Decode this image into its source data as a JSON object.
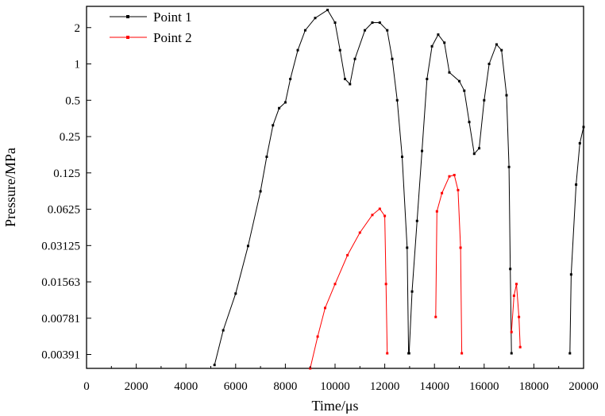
{
  "chart_data": {
    "type": "line",
    "xlabel": "Time/μs",
    "ylabel": "Pressure/MPa",
    "y_scale": "log2",
    "xlim": [
      0,
      20000
    ],
    "ylim": [
      0.003,
      3.0
    ],
    "x_ticks": [
      "0",
      "2000",
      "4000",
      "6000",
      "8000",
      "10000",
      "12000",
      "14000",
      "16000",
      "18000",
      "20000"
    ],
    "x_tick_values": [
      0,
      2000,
      4000,
      6000,
      8000,
      10000,
      12000,
      14000,
      16000,
      18000,
      20000
    ],
    "y_ticks": [
      "2",
      "1",
      "0.5",
      "0.25",
      "0.125",
      "0.0625",
      "0.03125",
      "0.01563",
      "0.00781",
      "0.00391"
    ],
    "y_tick_values": [
      2,
      1,
      0.5,
      0.25,
      0.125,
      0.0625,
      0.03125,
      0.01563,
      0.00781,
      0.00391
    ],
    "grid": false,
    "legend_position": "top-left",
    "series": [
      {
        "name": "Point 1",
        "color": "#000000",
        "segments": [
          [
            [
              5150,
              0.0032
            ],
            [
              5500,
              0.0062
            ],
            [
              6000,
              0.0125
            ],
            [
              6500,
              0.031
            ],
            [
              7000,
              0.088
            ],
            [
              7250,
              0.17
            ],
            [
              7500,
              0.31
            ],
            [
              7750,
              0.43
            ],
            [
              8000,
              0.48
            ],
            [
              8200,
              0.75
            ],
            [
              8500,
              1.3
            ],
            [
              8800,
              1.9
            ],
            [
              9200,
              2.4
            ],
            [
              9700,
              2.8
            ],
            [
              10000,
              2.2
            ],
            [
              10200,
              1.3
            ],
            [
              10400,
              0.75
            ],
            [
              10600,
              0.68
            ],
            [
              10800,
              1.1
            ],
            [
              11200,
              1.9
            ],
            [
              11500,
              2.2
            ],
            [
              11800,
              2.2
            ],
            [
              12100,
              1.9
            ],
            [
              12300,
              1.1
            ],
            [
              12500,
              0.5
            ],
            [
              12700,
              0.17
            ],
            [
              12900,
              0.03
            ],
            [
              12960,
              0.004
            ]
          ],
          [
            [
              12980,
              0.004
            ],
            [
              13100,
              0.013
            ],
            [
              13300,
              0.05
            ],
            [
              13500,
              0.19
            ],
            [
              13700,
              0.75
            ],
            [
              13900,
              1.4
            ],
            [
              14150,
              1.75
            ],
            [
              14400,
              1.5
            ],
            [
              14600,
              0.85
            ],
            [
              15000,
              0.72
            ],
            [
              15200,
              0.6
            ],
            [
              15400,
              0.33
            ],
            [
              15600,
              0.18
            ],
            [
              15800,
              0.2
            ],
            [
              16000,
              0.5
            ],
            [
              16200,
              1.0
            ],
            [
              16500,
              1.45
            ],
            [
              16700,
              1.3
            ],
            [
              16900,
              0.55
            ],
            [
              17000,
              0.14
            ],
            [
              17050,
              0.02
            ],
            [
              17100,
              0.004
            ]
          ],
          [
            [
              19450,
              0.004
            ],
            [
              19500,
              0.018
            ],
            [
              19700,
              0.1
            ],
            [
              19850,
              0.22
            ],
            [
              20000,
              0.3
            ]
          ]
        ]
      },
      {
        "name": "Point 2",
        "color": "#ff0000",
        "segments": [
          [
            [
              9000,
              0.003
            ],
            [
              9300,
              0.0055
            ],
            [
              9600,
              0.0095
            ],
            [
              10000,
              0.015
            ],
            [
              10500,
              0.026
            ],
            [
              11000,
              0.04
            ],
            [
              11500,
              0.056
            ],
            [
              11800,
              0.063
            ],
            [
              12000,
              0.055
            ],
            [
              12050,
              0.015
            ],
            [
              12100,
              0.004
            ]
          ],
          [
            [
              14050,
              0.008
            ],
            [
              14100,
              0.06
            ],
            [
              14300,
              0.085
            ],
            [
              14600,
              0.117
            ],
            [
              14800,
              0.12
            ],
            [
              14950,
              0.09
            ],
            [
              15050,
              0.03
            ],
            [
              15100,
              0.004
            ]
          ],
          [
            [
              17100,
              0.006
            ],
            [
              17200,
              0.012
            ],
            [
              17300,
              0.015
            ],
            [
              17400,
              0.008
            ],
            [
              17450,
              0.0045
            ]
          ]
        ]
      }
    ]
  }
}
